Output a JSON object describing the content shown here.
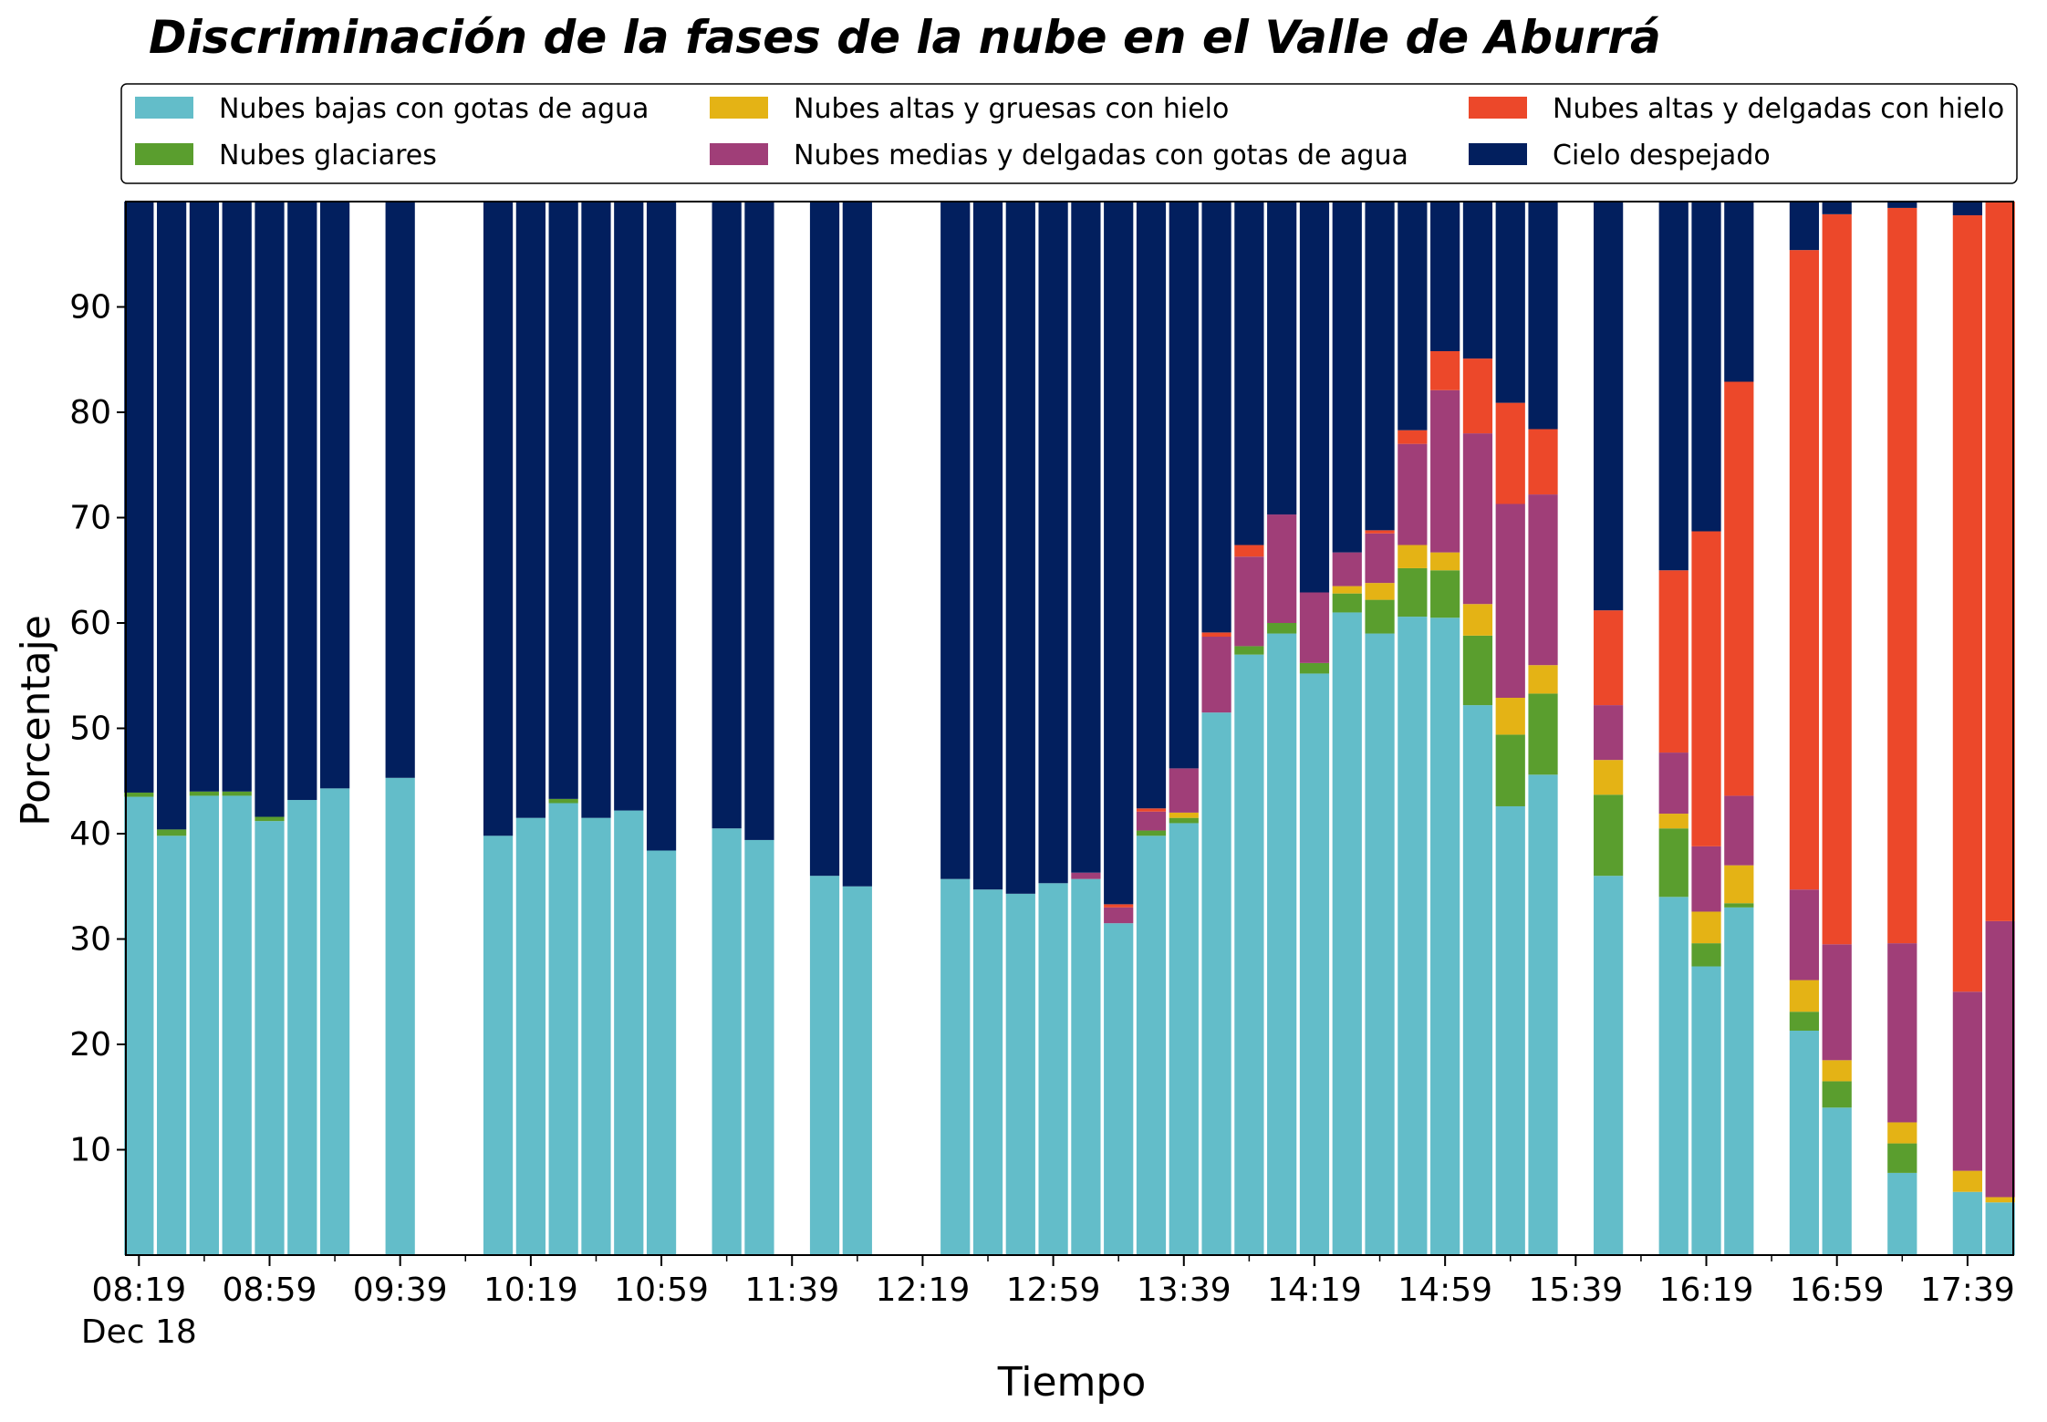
{
  "chart_data": {
    "type": "bar",
    "stacked": true,
    "title": "Discriminación de la fases de la nube en el Valle de Aburrá",
    "xlabel": "Tiempo",
    "ylabel": "Porcentaje",
    "ylim": [
      0,
      100
    ],
    "yticks": [
      10,
      20,
      30,
      40,
      50,
      60,
      70,
      80,
      90
    ],
    "xlim_minutes": [
      495,
      1073
    ],
    "xtick_labels": [
      "08:19",
      "08:59",
      "09:39",
      "10:19",
      "10:59",
      "11:39",
      "12:19",
      "12:59",
      "13:39",
      "14:19",
      "14:59",
      "15:39",
      "16:19",
      "16:59",
      "17:39"
    ],
    "xtick_minutes": [
      499,
      539,
      579,
      619,
      659,
      699,
      739,
      779,
      819,
      859,
      899,
      939,
      979,
      1019,
      1059
    ],
    "xtick_sublabel": "Dec 18",
    "bar_width_minutes": 9,
    "legend_position": "top",
    "times": [
      "08:19",
      "08:29",
      "08:39",
      "08:49",
      "08:59",
      "09:09",
      "09:19",
      "09:39",
      "10:09",
      "10:19",
      "10:29",
      "10:39",
      "10:49",
      "10:59",
      "11:19",
      "11:29",
      "11:49",
      "11:59",
      "12:29",
      "12:39",
      "12:49",
      "12:59",
      "13:09",
      "13:19",
      "13:29",
      "13:39",
      "13:49",
      "13:59",
      "14:09",
      "14:19",
      "14:29",
      "14:39",
      "14:49",
      "14:59",
      "15:09",
      "15:19",
      "15:29",
      "15:49",
      "16:09",
      "16:19",
      "16:29",
      "16:49",
      "16:59",
      "17:19",
      "17:39",
      "17:49"
    ],
    "x_minutes": [
      499,
      509,
      519,
      529,
      539,
      549,
      559,
      579,
      609,
      619,
      629,
      639,
      649,
      659,
      679,
      689,
      709,
      719,
      749,
      759,
      769,
      779,
      789,
      799,
      809,
      819,
      829,
      839,
      849,
      859,
      869,
      879,
      889,
      899,
      909,
      919,
      929,
      949,
      969,
      979,
      989,
      1009,
      1019,
      1039,
      1059,
      1069
    ],
    "series": [
      {
        "name": "Nubes bajas con gotas de agua",
        "color": "#63bdc9",
        "values": [
          43.5,
          39.8,
          43.6,
          43.6,
          41.2,
          43.2,
          44.3,
          45.3,
          39.8,
          41.5,
          42.9,
          41.5,
          42.2,
          38.4,
          40.5,
          39.4,
          36.0,
          35.0,
          35.7,
          34.7,
          34.3,
          35.3,
          35.7,
          31.5,
          39.8,
          41.0,
          51.5,
          57.0,
          59.0,
          55.2,
          61.0,
          59.0,
          60.6,
          60.5,
          52.2,
          42.6,
          45.6,
          36.0,
          34.0,
          27.4,
          33.0,
          21.3,
          14.0,
          7.8,
          6.0,
          5.0
        ]
      },
      {
        "name": "Nubes glaciares",
        "color": "#5a9e2e",
        "values": [
          0.4,
          0.6,
          0.4,
          0.4,
          0.4,
          0,
          0,
          0,
          0,
          0,
          0.4,
          0,
          0,
          0,
          0,
          0,
          0,
          0,
          0,
          0,
          0,
          0,
          0,
          0,
          0.5,
          0.5,
          0,
          0.8,
          1.0,
          1.0,
          1.8,
          3.2,
          4.6,
          4.5,
          6.6,
          6.8,
          7.7,
          7.7,
          6.5,
          2.2,
          0.4,
          1.8,
          2.5,
          2.8,
          0,
          0
        ]
      },
      {
        "name": "Nubes altas y gruesas con hielo",
        "color": "#e4b315",
        "values": [
          0,
          0,
          0,
          0,
          0,
          0,
          0,
          0,
          0,
          0,
          0,
          0,
          0,
          0,
          0,
          0,
          0,
          0,
          0,
          0,
          0,
          0,
          0,
          0,
          0,
          0.5,
          0,
          0,
          0,
          0,
          0.7,
          1.6,
          2.2,
          1.7,
          3.0,
          3.5,
          2.7,
          3.3,
          1.4,
          3.0,
          3.6,
          3.0,
          2.0,
          2.0,
          2.0,
          0.5
        ]
      },
      {
        "name": "Nubes medias y delgadas con gotas de agua",
        "color": "#a03e78",
        "values": [
          0,
          0,
          0,
          0,
          0,
          0,
          0,
          0,
          0,
          0,
          0,
          0,
          0,
          0,
          0,
          0,
          0,
          0,
          0,
          0,
          0,
          0,
          0.6,
          1.5,
          1.8,
          4.2,
          7.2,
          8.5,
          10.3,
          6.7,
          3.2,
          4.7,
          9.6,
          15.4,
          16.2,
          18.4,
          16.2,
          5.2,
          5.8,
          6.2,
          6.6,
          8.6,
          11.0,
          17.0,
          17.0,
          26.2
        ]
      },
      {
        "name": "Nubes altas y delgadas con hielo",
        "color": "#ec482a",
        "values": [
          0,
          0,
          0,
          0,
          0,
          0,
          0,
          0,
          0,
          0,
          0,
          0,
          0,
          0,
          0,
          0,
          0,
          0,
          0,
          0,
          0,
          0,
          0,
          0.3,
          0.3,
          0,
          0.4,
          1.1,
          0,
          0,
          0,
          0.3,
          1.3,
          3.7,
          7.1,
          9.6,
          6.2,
          9.0,
          17.3,
          29.9,
          39.3,
          60.7,
          69.3,
          69.8,
          73.7,
          68.3
        ]
      },
      {
        "name": "Cielo despejado",
        "color": "#021f5e",
        "values": [
          56.1,
          59.6,
          56.0,
          56.0,
          58.4,
          56.8,
          55.7,
          54.7,
          60.2,
          58.5,
          56.7,
          58.5,
          57.8,
          61.6,
          59.5,
          60.6,
          64.0,
          65.0,
          64.3,
          65.3,
          65.7,
          64.7,
          63.7,
          66.7,
          57.6,
          53.8,
          40.9,
          32.6,
          29.7,
          37.1,
          33.3,
          31.2,
          21.7,
          14.2,
          14.9,
          19.1,
          21.6,
          38.8,
          35.0,
          31.3,
          17.1,
          4.6,
          1.2,
          0.6,
          1.3,
          0
        ]
      }
    ]
  }
}
